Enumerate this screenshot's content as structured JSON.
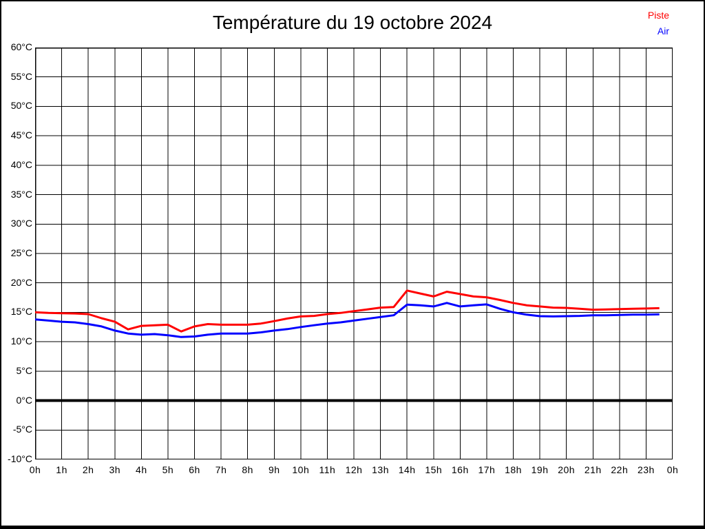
{
  "title": "Température du 19 octobre 2024",
  "legend": [
    {
      "label": "Piste",
      "color": "#ff0000"
    },
    {
      "label": "Air",
      "color": "#0000ff"
    }
  ],
  "chart_data": {
    "type": "line",
    "title": "Température du 19 octobre 2024",
    "xlabel": "",
    "ylabel": "",
    "xlim": [
      0,
      24
    ],
    "ylim": [
      -10,
      60
    ],
    "grid": true,
    "zero_line_bold": true,
    "legend_position": "top-right",
    "x_tick_hours": [
      0,
      1,
      2,
      3,
      4,
      5,
      6,
      7,
      8,
      9,
      10,
      11,
      12,
      13,
      14,
      15,
      16,
      17,
      18,
      19,
      20,
      21,
      22,
      23,
      24
    ],
    "x_tick_labels": [
      "0h",
      "1h",
      "2h",
      "3h",
      "4h",
      "5h",
      "6h",
      "7h",
      "8h",
      "9h",
      "10h",
      "11h",
      "12h",
      "13h",
      "14h",
      "15h",
      "16h",
      "17h",
      "18h",
      "19h",
      "20h",
      "21h",
      "22h",
      "23h",
      "0h"
    ],
    "y_tick_values": [
      60,
      55,
      50,
      45,
      40,
      35,
      30,
      25,
      20,
      15,
      10,
      5,
      0,
      -5,
      -10
    ],
    "y_tick_labels": [
      "60°C",
      "55°C",
      "50°C",
      "45°C",
      "40°C",
      "35°C",
      "30°C",
      "25°C",
      "20°C",
      "15°C",
      "10°C",
      "5°C",
      "0°C",
      "-5°C",
      "-10°C"
    ],
    "x": [
      0,
      0.5,
      1,
      1.5,
      2,
      2.5,
      3,
      3.5,
      4,
      4.5,
      5,
      5.5,
      6,
      6.5,
      7,
      7.5,
      8,
      8.5,
      9,
      9.5,
      10,
      10.5,
      11,
      11.5,
      12,
      12.5,
      13,
      13.5,
      14,
      14.5,
      15,
      15.5,
      16,
      16.5,
      17,
      17.5,
      18,
      18.5,
      19,
      19.5,
      20,
      20.5,
      21,
      21.5,
      22,
      22.5,
      23,
      23.5
    ],
    "series": [
      {
        "name": "Piste",
        "color": "#ff0000",
        "values": [
          15,
          14.9,
          14.85,
          14.8,
          14.7,
          14,
          13.4,
          12.1,
          12.7,
          12.8,
          12.9,
          11.75,
          12.6,
          13,
          12.9,
          12.9,
          12.9,
          13.1,
          13.5,
          13.95,
          14.3,
          14.4,
          14.7,
          14.9,
          15.2,
          15.5,
          15.8,
          15.9,
          18.7,
          18.2,
          17.7,
          18.5,
          18.1,
          17.7,
          17.55,
          17.1,
          16.6,
          16.2,
          16,
          15.8,
          15.75,
          15.6,
          15.45,
          15.5,
          15.55,
          15.6,
          15.65,
          15.7
        ]
      },
      {
        "name": "Air",
        "color": "#0000ff",
        "values": [
          13.8,
          13.6,
          13.4,
          13.3,
          13,
          12.6,
          11.9,
          11.4,
          11.2,
          11.3,
          11.1,
          10.8,
          10.9,
          11.2,
          11.4,
          11.4,
          11.4,
          11.6,
          11.9,
          12.15,
          12.5,
          12.8,
          13.1,
          13.3,
          13.6,
          13.9,
          14.2,
          14.5,
          16.3,
          16.2,
          16,
          16.6,
          16,
          16.2,
          16.35,
          15.6,
          15,
          14.6,
          14.35,
          14.3,
          14.35,
          14.4,
          14.5,
          14.5,
          14.55,
          14.6,
          14.6,
          14.65
        ]
      }
    ]
  }
}
